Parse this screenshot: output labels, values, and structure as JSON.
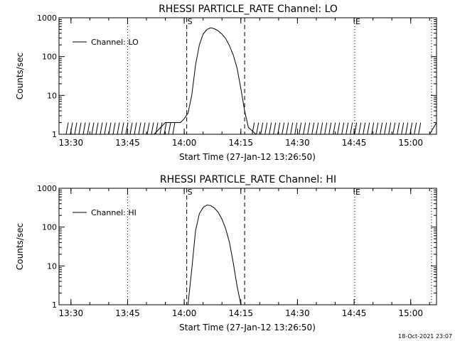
{
  "timestamp": "18-Oct-2021 23:07",
  "panels": [
    {
      "title": "RHESSI PARTICLE_RATE Channel: LO",
      "ylabel": "Counts/sec",
      "xlabel": "Start Time (27-Jan-12 13:26:50)",
      "legend": "Channel: LO",
      "y_ticks": [
        "1000",
        "100",
        "10",
        "1"
      ],
      "x_ticks": [
        "13:30",
        "13:45",
        "14:00",
        "14:15",
        "14:30",
        "14:45",
        "15:00"
      ],
      "markers": [
        {
          "label": "S",
          "time": "14:00:40",
          "style": "dashed"
        },
        {
          "label": "",
          "time": "14:16:00",
          "style": "dashed"
        },
        {
          "label": "E",
          "time": "14:45:10",
          "style": "dotted"
        }
      ]
    },
    {
      "title": "RHESSI PARTICLE_RATE Channel: HI",
      "ylabel": "Counts/sec",
      "xlabel": "Start Time (27-Jan-12 13:26:50)",
      "legend": "Channel: HI",
      "y_ticks": [
        "1000",
        "100",
        "10",
        "1"
      ],
      "x_ticks": [
        "13:30",
        "13:45",
        "14:00",
        "14:15",
        "14:30",
        "14:45",
        "15:00"
      ],
      "markers": [
        {
          "label": "S",
          "time": "14:00:40",
          "style": "dashed"
        },
        {
          "label": "",
          "time": "14:16:00",
          "style": "dashed"
        },
        {
          "label": "E",
          "time": "14:45:10",
          "style": "dotted"
        }
      ]
    }
  ],
  "chart_data": [
    {
      "type": "line",
      "title": "RHESSI PARTICLE_RATE Channel: LO",
      "xlabel": "Start Time (27-Jan-12 13:26:50)",
      "ylabel": "Counts/sec",
      "y_scale": "log",
      "ylim": [
        1,
        1000
      ],
      "xlim": [
        "13:26:50",
        "15:06:50"
      ],
      "grid": false,
      "legend_position": "top-left",
      "vertical_lines": [
        {
          "time": "13:45:00",
          "style": "dotted"
        },
        {
          "time": "14:00:40",
          "style": "dashed",
          "label": "S"
        },
        {
          "time": "14:16:00",
          "style": "dashed"
        },
        {
          "time": "14:45:10",
          "style": "dotted",
          "label": "E"
        },
        {
          "time": "15:05:30",
          "style": "dotted"
        }
      ],
      "series": [
        {
          "name": "Channel: LO",
          "x": [
            "13:26:50",
            "13:38:00",
            "13:43:00",
            "13:47:00",
            "13:52:00",
            "13:55:00",
            "13:57:30",
            "13:59:00",
            "14:00:00",
            "14:01:00",
            "14:02:00",
            "14:03:00",
            "14:04:00",
            "14:05:00",
            "14:06:00",
            "14:07:00",
            "14:08:00",
            "14:09:00",
            "14:10:00",
            "14:11:00",
            "14:12:00",
            "14:13:00",
            "14:14:00",
            "14:15:00",
            "14:16:00",
            "14:17:00",
            "14:19:00",
            "14:25:00",
            "14:35:00",
            "14:45:00",
            "14:55:00",
            "15:05:00",
            "15:06:50"
          ],
          "y": [
            1,
            1,
            1,
            1,
            1,
            2,
            2,
            2,
            2.5,
            3.5,
            10,
            60,
            200,
            380,
            500,
            550,
            520,
            460,
            380,
            290,
            190,
            110,
            50,
            15,
            4,
            1.5,
            1,
            1,
            1,
            1,
            1,
            1,
            2
          ]
        }
      ]
    },
    {
      "type": "line",
      "title": "RHESSI PARTICLE_RATE Channel: HI",
      "xlabel": "Start Time (27-Jan-12 13:26:50)",
      "ylabel": "Counts/sec",
      "y_scale": "log",
      "ylim": [
        1,
        1000
      ],
      "xlim": [
        "13:26:50",
        "15:06:50"
      ],
      "grid": false,
      "legend_position": "top-left",
      "vertical_lines": [
        {
          "time": "13:45:00",
          "style": "dotted"
        },
        {
          "time": "14:00:40",
          "style": "dashed",
          "label": "S"
        },
        {
          "time": "14:16:00",
          "style": "dashed"
        },
        {
          "time": "14:45:10",
          "style": "dotted",
          "label": "E"
        },
        {
          "time": "15:05:30",
          "style": "dotted"
        }
      ],
      "series": [
        {
          "name": "Channel: HI",
          "x": [
            "14:01:00",
            "14:02:00",
            "14:03:00",
            "14:04:00",
            "14:05:00",
            "14:06:00",
            "14:07:00",
            "14:08:00",
            "14:09:00",
            "14:10:00",
            "14:11:00",
            "14:12:00",
            "14:13:00",
            "14:14:00",
            "14:15:00"
          ],
          "y": [
            1,
            8,
            80,
            220,
            320,
            370,
            360,
            310,
            240,
            160,
            90,
            40,
            12,
            3,
            1
          ]
        }
      ]
    }
  ]
}
